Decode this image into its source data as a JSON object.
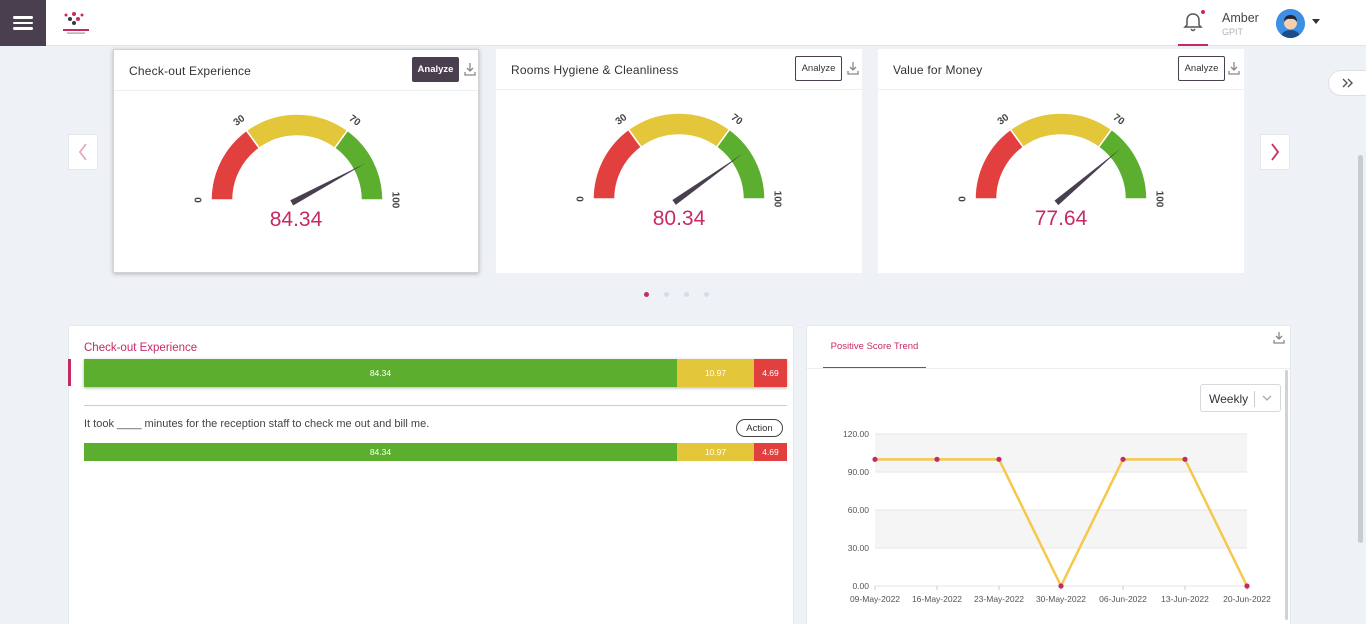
{
  "user": {
    "name": "Amber",
    "org": "GPIT"
  },
  "gauges": [
    {
      "title": "Check-out Experience",
      "value": "84.34",
      "analyze_label": "Analyze"
    },
    {
      "title": "Rooms Hygiene & Cleanliness",
      "value": "80.34",
      "analyze_label": "Analyze"
    },
    {
      "title": "Value for Money",
      "value": "77.64",
      "analyze_label": "Analyze"
    }
  ],
  "gauge_scale": {
    "ticks": [
      "0",
      "30",
      "70",
      "100"
    ],
    "colors": {
      "red": "#e23f3f",
      "yellow": "#e3c639",
      "green": "#5cae2e",
      "needle": "#4a3f4f"
    }
  },
  "detail": {
    "title": "Check-out Experience",
    "summary": {
      "positive": "84.34",
      "neutral": "10.97",
      "negative": "4.69"
    },
    "question": "It took ____ minutes for the reception staff to check me out and bill me.",
    "question_scores": {
      "positive": "84.34",
      "neutral": "10.97",
      "negative": "4.69"
    },
    "action_label": "Action"
  },
  "trend": {
    "tab_label": "Positive Score Trend",
    "period": "Weekly"
  },
  "accent": "#c62a66",
  "chart_data": {
    "type": "line",
    "title": "",
    "xlabel": "",
    "ylabel": "",
    "categories": [
      "09-May-2022",
      "16-May-2022",
      "23-May-2022",
      "30-May-2022",
      "06-Jun-2022",
      "13-Jun-2022",
      "20-Jun-2022"
    ],
    "series": [
      {
        "values": [
          100,
          100,
          100,
          0,
          100,
          100,
          0
        ],
        "color": "#f5c84c"
      }
    ],
    "ylim": [
      0,
      120
    ],
    "yticks": [
      "0.00",
      "30.00",
      "60.00",
      "90.00",
      "120.00"
    ],
    "grid": true
  }
}
